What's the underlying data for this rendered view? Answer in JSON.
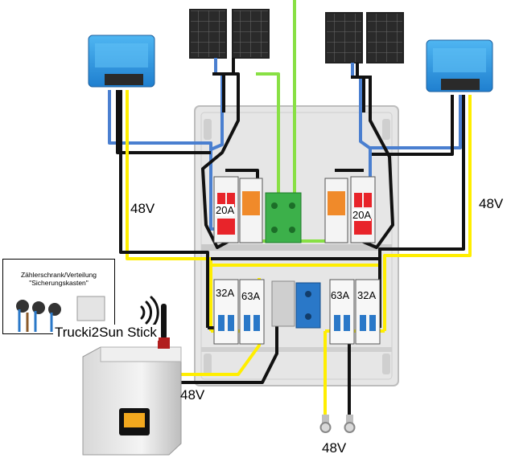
{
  "colors": {
    "battery_positive": "#ffee00",
    "battery_negative": "#111111",
    "pv_positive": "#4a7fd0",
    "pv_negative": "#111111",
    "ground": "#88e044",
    "breaker_red": "#e8242a",
    "spd_orange": "#f08a2a",
    "terminal_green": "#3cb04a",
    "terminal_blue": "#2a78c8",
    "enclosure": "#e6e6e6",
    "controller_blue": "#2e9ae0"
  },
  "labels": {
    "v48_left": "48V",
    "v48_right": "48V",
    "v48_inverter": "48V",
    "v48_bottom": "48V",
    "breaker_20a_left": "20A",
    "breaker_20a_right": "20A",
    "breaker_32a_left": "32A",
    "breaker_63a_left": "63A",
    "breaker_63a_right": "63A",
    "breaker_32a_right": "32A",
    "meter_title_line1": "Zählerschrank/Verteilung",
    "meter_title_line2": "\"Sicherungskasten\"",
    "stick_label": "Trucki2Sun Stick"
  },
  "icons": {
    "solar_panels": "solar-panel-icon",
    "charge_controller": "mppt-controller-icon",
    "wifi": "wifi-icon",
    "antenna": "antenna-icon",
    "inverter": "inverter-icon",
    "ring_terminal": "ring-terminal-icon"
  }
}
